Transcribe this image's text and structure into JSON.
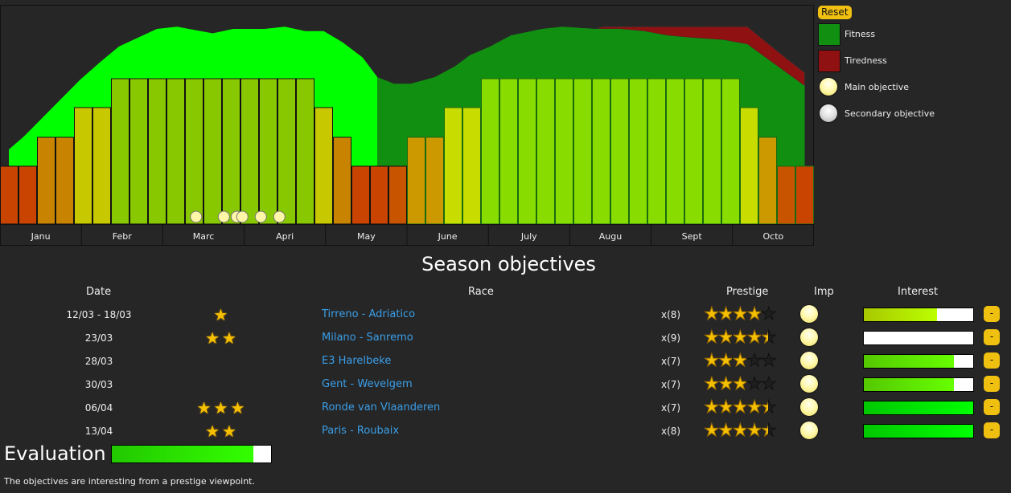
{
  "legend": {
    "reset_label": "Reset",
    "items": [
      {
        "label": "Fitness",
        "color": "#118f11",
        "kind": "square"
      },
      {
        "label": "Tiredness",
        "color": "#8f1111",
        "kind": "square"
      },
      {
        "label": "Main objective",
        "kind": "main"
      },
      {
        "label": "Secondary objective",
        "kind": "secondary"
      }
    ]
  },
  "chart_data": {
    "type": "bar",
    "title": "",
    "months": [
      "Janu",
      "Febr",
      "Marc",
      "Apri",
      "May",
      "June",
      "July",
      "Augu",
      "Sept",
      "Octo"
    ],
    "weeks": 44,
    "ylim": [
      0,
      100
    ],
    "bar_levels": [
      1,
      1,
      2,
      2,
      3,
      3,
      4,
      4,
      4,
      4,
      4,
      4,
      4,
      4,
      4,
      4,
      4,
      3,
      2,
      1,
      1,
      1,
      2,
      2,
      3,
      3,
      4,
      4,
      4,
      4,
      4,
      4,
      4,
      4,
      4,
      4,
      4,
      4,
      4,
      4,
      3,
      2,
      1,
      1
    ],
    "bar_colors": [
      "#c84400",
      "#c84400",
      "#c88400",
      "#c88400",
      "#c8c800",
      "#c8c800",
      "#88c800",
      "#88c800",
      "#88c800",
      "#88c800",
      "#88c800",
      "#88c800",
      "#88c800",
      "#88c800",
      "#88c800",
      "#88c800",
      "#88c800",
      "#c8c800",
      "#c88400",
      "#c84400",
      "#c84400",
      "#c85400",
      "#cc9900",
      "#cc9900",
      "#c8dc00",
      "#c8dc00",
      "#88dc00",
      "#88dc00",
      "#88dc00",
      "#88dc00",
      "#88dc00",
      "#88dc00",
      "#88dc00",
      "#88dc00",
      "#88dc00",
      "#88dc00",
      "#88dc00",
      "#88dc00",
      "#88dc00",
      "#88dc00",
      "#c8dc00",
      "#cc9900",
      "#c85400",
      "#c84400"
    ],
    "fitness": [
      [
        0.48,
        34
      ],
      [
        1.3,
        40
      ],
      [
        4.35,
        66
      ],
      [
        5.43,
        74
      ],
      [
        6.43,
        81
      ],
      [
        8.48,
        89
      ],
      [
        9.57,
        90
      ],
      [
        11.5,
        87
      ],
      [
        12.6,
        89
      ],
      [
        14.3,
        89
      ],
      [
        15.4,
        90
      ],
      [
        16.5,
        88
      ],
      [
        17.5,
        88
      ],
      [
        18.5,
        83
      ],
      [
        19.6,
        76
      ],
      [
        20.4,
        67
      ],
      [
        21.3,
        64
      ],
      [
        22.2,
        64
      ],
      [
        23.5,
        67
      ],
      [
        24.6,
        72
      ],
      [
        25.4,
        77
      ],
      [
        26.5,
        81
      ],
      [
        27.6,
        86
      ],
      [
        29.3,
        89
      ],
      [
        30.4,
        90
      ],
      [
        32.2,
        89
      ],
      [
        33.5,
        89
      ],
      [
        34.8,
        88
      ],
      [
        36.1,
        86
      ],
      [
        37.4,
        85
      ],
      [
        39.1,
        84
      ],
      [
        40.4,
        82
      ],
      [
        41.7,
        74
      ],
      [
        43.5,
        63
      ]
    ],
    "fitness_plus_tiredness": [
      [
        32.2,
        89
      ],
      [
        32.6,
        90
      ],
      [
        34.8,
        90
      ],
      [
        37.8,
        90
      ],
      [
        40.4,
        90
      ],
      [
        42,
        79
      ],
      [
        43.5,
        69
      ]
    ],
    "past_until_week": 20.4,
    "main_objectives_weeks": [
      10.6,
      12.1,
      12.8,
      13.1,
      14.1,
      15.1
    ],
    "colors": {
      "fitness_past": "#00ff00",
      "fitness": "#118f11",
      "tiredness": "#8f1111"
    }
  },
  "objectives": {
    "title": "Season objectives",
    "headers": {
      "date": "Date",
      "race": "Race",
      "prestige": "Prestige",
      "imp": "Imp",
      "interest": "Interest"
    },
    "rows": [
      {
        "date": "12/03 - 18/03",
        "stars": 1,
        "race": "Tirreno - Adriatico",
        "mult": "x(8)",
        "prestige": 4,
        "interest": 67,
        "interest_colors": [
          "#a8c800",
          "#bbff00"
        ],
        "remove": "-"
      },
      {
        "date": "23/03",
        "stars": 2,
        "race": "Milano - Sanremo",
        "mult": "x(9)",
        "prestige": 4.5,
        "interest": 0,
        "interest_colors": [
          "#a8c800",
          "#bbff00"
        ],
        "remove": "-"
      },
      {
        "date": "28/03",
        "stars": 0,
        "race": "E3 Harelbeke",
        "mult": "x(7)",
        "prestige": 3,
        "interest": 82,
        "interest_colors": [
          "#55c800",
          "#66ff00"
        ],
        "remove": "-"
      },
      {
        "date": "30/03",
        "stars": 0,
        "race": "Gent - Wevelgem",
        "mult": "x(7)",
        "prestige": 3,
        "interest": 82,
        "interest_colors": [
          "#55c800",
          "#66ff00"
        ],
        "remove": "-"
      },
      {
        "date": "06/04",
        "stars": 3,
        "race": "Ronde van Vlaanderen",
        "mult": "x(7)",
        "prestige": 4.5,
        "interest": 100,
        "interest_colors": [
          "#00c800",
          "#00ff00"
        ],
        "remove": "-"
      },
      {
        "date": "13/04",
        "stars": 2,
        "race": "Paris - Roubaix",
        "mult": "x(8)",
        "prestige": 4.5,
        "interest": 100,
        "interest_colors": [
          "#00c800",
          "#00ff00"
        ],
        "remove": "-"
      }
    ]
  },
  "evaluation": {
    "label": "Evaluation",
    "value": 89,
    "message": "The objectives are interesting from a prestige viewpoint."
  }
}
